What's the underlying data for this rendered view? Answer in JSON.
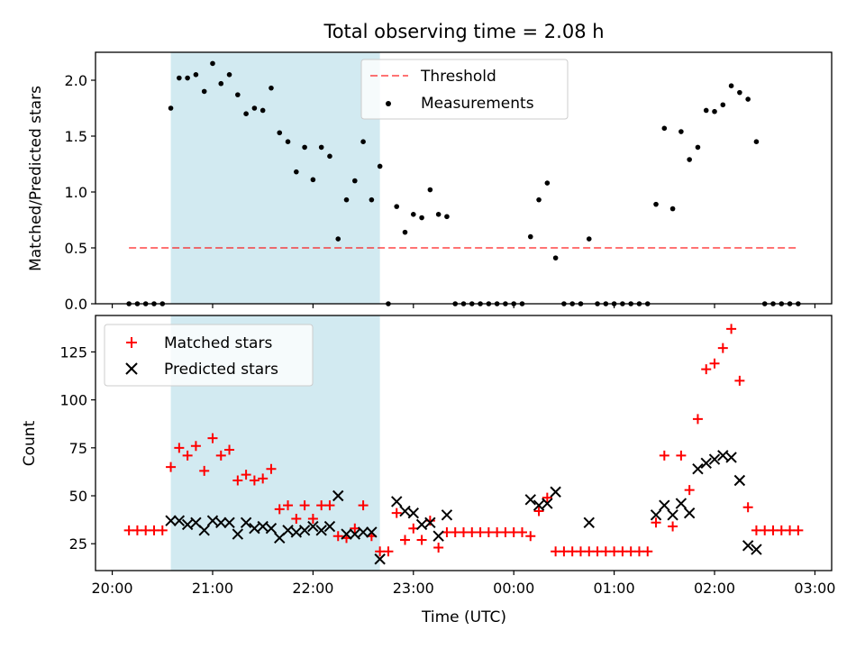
{
  "chart_data": {
    "title": "Total observing time = 2.08 h",
    "xlabel": "Time (UTC)",
    "xlim": [
      "20:00",
      "03:00"
    ],
    "xticks": [
      "20:00",
      "21:00",
      "22:00",
      "23:00",
      "00:00",
      "01:00",
      "02:00",
      "03:00"
    ],
    "shaded_interval": {
      "start": "20:35",
      "end": "22:40",
      "color": "#add8e6"
    },
    "panels": [
      {
        "type": "scatter",
        "ylabel": "Matched/Predicted stars",
        "ylim": [
          0,
          2.25
        ],
        "yticks": [
          "0.0",
          "0.5",
          "1.0",
          "1.5",
          "2.0"
        ],
        "grid": false,
        "legend_position": "top-center",
        "threshold": {
          "name": "Threshold",
          "value": 0.5,
          "x_start": "20:10",
          "x_end": "02:50",
          "color": "#ff0000",
          "style": "dashed"
        },
        "series": [
          {
            "name": "Measurements",
            "color": "#000000",
            "marker": "dot",
            "points": [
              [
                "20:10",
                0.0
              ],
              [
                "20:15",
                0.0
              ],
              [
                "20:20",
                0.0
              ],
              [
                "20:25",
                0.0
              ],
              [
                "20:30",
                0.0
              ],
              [
                "20:35",
                1.75
              ],
              [
                "20:40",
                2.02
              ],
              [
                "20:45",
                2.02
              ],
              [
                "20:50",
                2.05
              ],
              [
                "20:55",
                1.9
              ],
              [
                "21:00",
                2.15
              ],
              [
                "21:05",
                1.97
              ],
              [
                "21:10",
                2.05
              ],
              [
                "21:15",
                1.87
              ],
              [
                "21:20",
                1.7
              ],
              [
                "21:25",
                1.75
              ],
              [
                "21:30",
                1.73
              ],
              [
                "21:35",
                1.93
              ],
              [
                "21:40",
                1.53
              ],
              [
                "21:45",
                1.45
              ],
              [
                "21:50",
                1.18
              ],
              [
                "21:55",
                1.4
              ],
              [
                "22:00",
                1.11
              ],
              [
                "22:05",
                1.4
              ],
              [
                "22:10",
                1.32
              ],
              [
                "22:15",
                0.58
              ],
              [
                "22:20",
                0.93
              ],
              [
                "22:25",
                1.1
              ],
              [
                "22:30",
                1.45
              ],
              [
                "22:35",
                0.93
              ],
              [
                "22:40",
                1.23
              ],
              [
                "22:45",
                0.0
              ],
              [
                "22:50",
                0.87
              ],
              [
                "22:55",
                0.64
              ],
              [
                "23:00",
                0.8
              ],
              [
                "23:05",
                0.77
              ],
              [
                "23:10",
                1.02
              ],
              [
                "23:15",
                0.8
              ],
              [
                "23:20",
                0.78
              ],
              [
                "23:25",
                0.0
              ],
              [
                "23:30",
                0.0
              ],
              [
                "23:35",
                0.0
              ],
              [
                "23:40",
                0.0
              ],
              [
                "23:45",
                0.0
              ],
              [
                "23:50",
                0.0
              ],
              [
                "23:55",
                0.0
              ],
              [
                "00:00",
                0.0
              ],
              [
                "00:05",
                0.0
              ],
              [
                "00:10",
                0.6
              ],
              [
                "00:15",
                0.93
              ],
              [
                "00:20",
                1.08
              ],
              [
                "00:25",
                0.41
              ],
              [
                "00:30",
                0.0
              ],
              [
                "00:35",
                0.0
              ],
              [
                "00:40",
                0.0
              ],
              [
                "00:45",
                0.58
              ],
              [
                "00:50",
                0.0
              ],
              [
                "00:55",
                0.0
              ],
              [
                "01:00",
                0.0
              ],
              [
                "01:05",
                0.0
              ],
              [
                "01:10",
                0.0
              ],
              [
                "01:15",
                0.0
              ],
              [
                "01:20",
                0.0
              ],
              [
                "01:25",
                0.89
              ],
              [
                "01:30",
                1.57
              ],
              [
                "01:35",
                0.85
              ],
              [
                "01:40",
                1.54
              ],
              [
                "01:45",
                1.29
              ],
              [
                "01:50",
                1.4
              ],
              [
                "01:55",
                1.73
              ],
              [
                "02:00",
                1.72
              ],
              [
                "02:05",
                1.78
              ],
              [
                "02:10",
                1.95
              ],
              [
                "02:15",
                1.89
              ],
              [
                "02:20",
                1.83
              ],
              [
                "02:25",
                1.45
              ],
              [
                "02:30",
                0.0
              ],
              [
                "02:35",
                0.0
              ],
              [
                "02:40",
                0.0
              ],
              [
                "02:45",
                0.0
              ],
              [
                "02:50",
                0.0
              ]
            ]
          }
        ]
      },
      {
        "type": "scatter",
        "ylabel": "Count",
        "ylim": [
          11,
          144
        ],
        "yticks": [
          "25",
          "50",
          "75",
          "100",
          "125"
        ],
        "grid": false,
        "legend_position": "top-left",
        "series": [
          {
            "name": "Matched stars",
            "color": "#ff0000",
            "marker": "plus",
            "points": [
              [
                "20:10",
                32
              ],
              [
                "20:15",
                32
              ],
              [
                "20:20",
                32
              ],
              [
                "20:25",
                32
              ],
              [
                "20:30",
                32
              ],
              [
                "20:35",
                65
              ],
              [
                "20:40",
                75
              ],
              [
                "20:45",
                71
              ],
              [
                "20:50",
                76
              ],
              [
                "20:55",
                63
              ],
              [
                "21:00",
                80
              ],
              [
                "21:05",
                71
              ],
              [
                "21:10",
                74
              ],
              [
                "21:15",
                58
              ],
              [
                "21:20",
                61
              ],
              [
                "21:25",
                58
              ],
              [
                "21:30",
                59
              ],
              [
                "21:35",
                64
              ],
              [
                "21:40",
                43
              ],
              [
                "21:45",
                45
              ],
              [
                "21:50",
                38
              ],
              [
                "21:55",
                45
              ],
              [
                "22:00",
                38
              ],
              [
                "22:05",
                45
              ],
              [
                "22:10",
                45
              ],
              [
                "22:15",
                29
              ],
              [
                "22:20",
                28
              ],
              [
                "22:25",
                33
              ],
              [
                "22:30",
                45
              ],
              [
                "22:35",
                29
              ],
              [
                "22:40",
                21
              ],
              [
                "22:45",
                21
              ],
              [
                "22:50",
                41
              ],
              [
                "22:55",
                27
              ],
              [
                "23:00",
                33
              ],
              [
                "23:05",
                27
              ],
              [
                "23:10",
                37
              ],
              [
                "23:15",
                23
              ],
              [
                "23:20",
                31
              ],
              [
                "23:25",
                31
              ],
              [
                "23:30",
                31
              ],
              [
                "23:35",
                31
              ],
              [
                "23:40",
                31
              ],
              [
                "23:45",
                31
              ],
              [
                "23:50",
                31
              ],
              [
                "23:55",
                31
              ],
              [
                "00:00",
                31
              ],
              [
                "00:05",
                31
              ],
              [
                "00:10",
                29
              ],
              [
                "00:15",
                42
              ],
              [
                "00:20",
                49
              ],
              [
                "00:25",
                21
              ],
              [
                "00:30",
                21
              ],
              [
                "00:35",
                21
              ],
              [
                "00:40",
                21
              ],
              [
                "00:45",
                21
              ],
              [
                "00:50",
                21
              ],
              [
                "00:55",
                21
              ],
              [
                "01:00",
                21
              ],
              [
                "01:05",
                21
              ],
              [
                "01:10",
                21
              ],
              [
                "01:15",
                21
              ],
              [
                "01:20",
                21
              ],
              [
                "01:25",
                36
              ],
              [
                "01:30",
                71
              ],
              [
                "01:35",
                34
              ],
              [
                "01:40",
                71
              ],
              [
                "01:45",
                53
              ],
              [
                "01:50",
                90
              ],
              [
                "01:55",
                116
              ],
              [
                "02:00",
                119
              ],
              [
                "02:05",
                127
              ],
              [
                "02:10",
                137
              ],
              [
                "02:15",
                110
              ],
              [
                "02:20",
                44
              ],
              [
                "02:25",
                32
              ],
              [
                "02:30",
                32
              ],
              [
                "02:35",
                32
              ],
              [
                "02:40",
                32
              ],
              [
                "02:45",
                32
              ],
              [
                "02:50",
                32
              ]
            ]
          },
          {
            "name": "Predicted stars",
            "color": "#000000",
            "marker": "x",
            "points": [
              [
                "20:35",
                37
              ],
              [
                "20:40",
                37
              ],
              [
                "20:45",
                35
              ],
              [
                "20:50",
                36
              ],
              [
                "20:55",
                32
              ],
              [
                "21:00",
                37
              ],
              [
                "21:05",
                36
              ],
              [
                "21:10",
                36
              ],
              [
                "21:15",
                30
              ],
              [
                "21:20",
                36
              ],
              [
                "21:25",
                33
              ],
              [
                "21:30",
                34
              ],
              [
                "21:35",
                33
              ],
              [
                "21:40",
                28
              ],
              [
                "21:45",
                32
              ],
              [
                "21:50",
                31
              ],
              [
                "21:55",
                32
              ],
              [
                "22:00",
                34
              ],
              [
                "22:05",
                32
              ],
              [
                "22:10",
                34
              ],
              [
                "22:15",
                50
              ],
              [
                "22:20",
                30
              ],
              [
                "22:25",
                30
              ],
              [
                "22:30",
                31
              ],
              [
                "22:35",
                31
              ],
              [
                "22:40",
                17
              ],
              [
                "22:50",
                47
              ],
              [
                "22:55",
                42
              ],
              [
                "23:00",
                41
              ],
              [
                "23:05",
                35
              ],
              [
                "23:10",
                36
              ],
              [
                "23:15",
                29
              ],
              [
                "23:20",
                40
              ],
              [
                "00:10",
                48
              ],
              [
                "00:15",
                45
              ],
              [
                "00:20",
                46
              ],
              [
                "00:25",
                52
              ],
              [
                "00:45",
                36
              ],
              [
                "01:25",
                40
              ],
              [
                "01:30",
                45
              ],
              [
                "01:35",
                40
              ],
              [
                "01:40",
                46
              ],
              [
                "01:45",
                41
              ],
              [
                "01:50",
                64
              ],
              [
                "01:55",
                67
              ],
              [
                "02:00",
                69
              ],
              [
                "02:05",
                71
              ],
              [
                "02:10",
                70
              ],
              [
                "02:15",
                58
              ],
              [
                "02:20",
                24
              ],
              [
                "02:25",
                22
              ]
            ]
          }
        ]
      }
    ]
  }
}
